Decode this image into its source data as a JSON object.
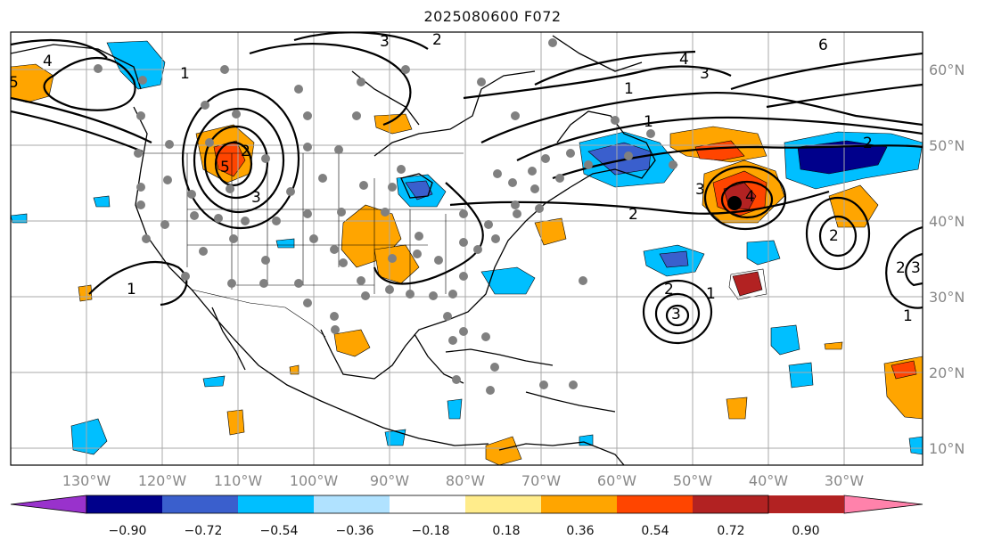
{
  "title": "2025080600 F072",
  "lon_labels": [
    "130°W",
    "120°W",
    "110°W",
    "100°W",
    "90°W",
    "80°W",
    "70°W",
    "60°W",
    "50°W",
    "40°W",
    "30°W"
  ],
  "lat_labels": [
    "60°N",
    "50°N",
    "40°N",
    "30°N",
    "20°N",
    "10°N"
  ],
  "colorbar": {
    "colors": [
      "#9932CC",
      "#00008B",
      "#3A5FCD",
      "#00BFFF",
      "#B0E2FF",
      "#FFFFFF",
      "#FFEC8B",
      "#FFA500",
      "#FF4500",
      "#B22222",
      "#FF82AB"
    ],
    "tick_labels": [
      "−0.90",
      "−0.72",
      "−0.54",
      "−0.36",
      "−0.18",
      "0.18",
      "0.36",
      "0.54",
      "0.72",
      "0.90"
    ]
  },
  "contour_labels": [
    "5",
    "1",
    "2",
    "3",
    "4",
    "5",
    "6",
    "1",
    "1",
    "2",
    "3",
    "4",
    "2",
    "3",
    "4",
    "2",
    "3",
    "2",
    "1",
    "1",
    "3",
    "2",
    "2",
    "3",
    "1"
  ]
}
